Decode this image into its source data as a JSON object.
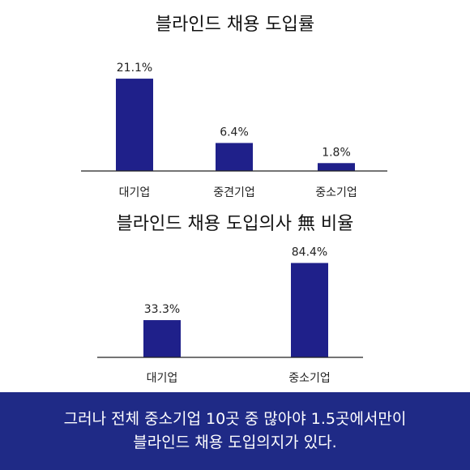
{
  "colors": {
    "bar": "#1f208a",
    "banner_bg": "#1f2a86",
    "axis": "#222222"
  },
  "chart_data": [
    {
      "type": "bar",
      "title": "블라인드 채용 도입률",
      "categories": [
        "대기업",
        "중견기업",
        "중소기업"
      ],
      "values": [
        21.1,
        6.4,
        1.8
      ],
      "value_labels": [
        "21.1%",
        "6.4%",
        "1.8%"
      ],
      "ylim": [
        0,
        25
      ]
    },
    {
      "type": "bar",
      "title": "블라인드 채용 도입의사 無 비율",
      "categories": [
        "대기업",
        "중소기업"
      ],
      "values": [
        33.3,
        84.4
      ],
      "value_labels": [
        "33.3%",
        "84.4%"
      ],
      "ylim": [
        0,
        100
      ]
    }
  ],
  "banner": {
    "line1": "그러나 전체 중소기업 10곳 중 많아야 1.5곳에서만이",
    "line2": "블라인드 채용 도입의지가 있다."
  }
}
